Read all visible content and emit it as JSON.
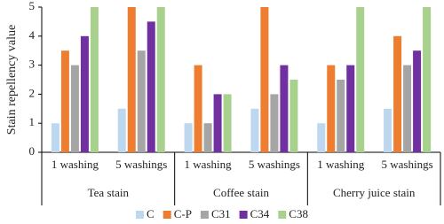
{
  "chart_data": {
    "type": "bar",
    "y_label": "Stain repellency value",
    "categories": [
      "1 washing",
      "5 washings",
      "1 washing",
      "5 washings",
      "1 washing",
      "5 washings"
    ],
    "groups": [
      "Tea stain",
      "Coffee stain",
      "Cherry juice stain"
    ],
    "series": [
      {
        "name": "C",
        "color": "#bdd7ee",
        "values": [
          1,
          1.5,
          1,
          1.5,
          1,
          1.5
        ]
      },
      {
        "name": "C-P",
        "color": "#ed7d31",
        "values": [
          3.5,
          5,
          3,
          5,
          3,
          4
        ]
      },
      {
        "name": "C31",
        "color": "#a5a5a5",
        "values": [
          3,
          3.5,
          1,
          2,
          2.5,
          3
        ]
      },
      {
        "name": "C34",
        "color": "#7030a0",
        "values": [
          4,
          4.5,
          2,
          3,
          3,
          3.5
        ]
      },
      {
        "name": "C38",
        "color": "#a9d18e",
        "values": [
          5,
          5,
          2,
          2.5,
          5,
          5
        ]
      }
    ],
    "ylim": [
      0,
      5
    ],
    "yticks": [
      0,
      1,
      2,
      3,
      4,
      5
    ],
    "grid": false,
    "legend": "bottom"
  }
}
